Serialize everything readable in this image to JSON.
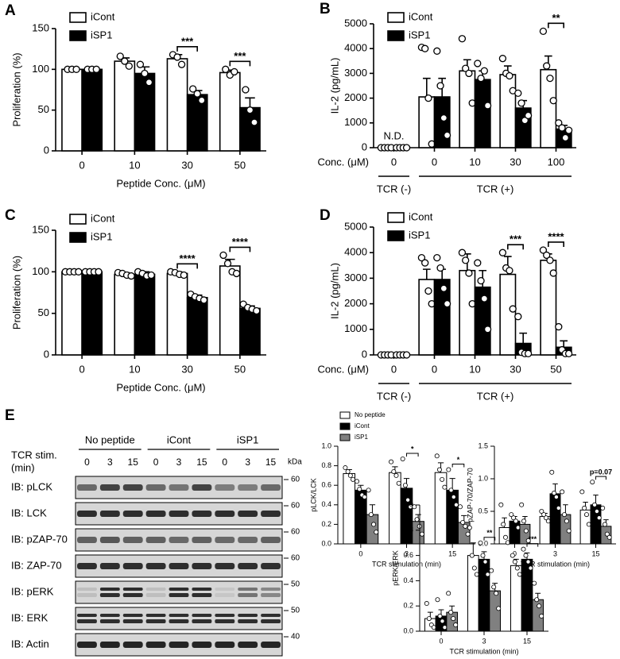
{
  "chart_data": [
    {
      "type": "bar",
      "panel": "A",
      "ylabel": "Proliferation (%)",
      "xlabel": "Peptide Conc. (μM)",
      "categories": [
        "0",
        "10",
        "30",
        "50"
      ],
      "ylim": [
        0,
        150
      ],
      "yticks": [
        0,
        50,
        100,
        150
      ],
      "legend": true,
      "series": [
        {
          "name": "iCont",
          "color": "#ffffff",
          "values": [
            100,
            110,
            113,
            96
          ],
          "errors": [
            0,
            4,
            5,
            3
          ],
          "points": [
            [
              100,
              100,
              100
            ],
            [
              116,
              110,
              104
            ],
            [
              118,
              115,
              106
            ],
            [
              100,
              93,
              97
            ]
          ]
        },
        {
          "name": "iSP1",
          "color": "#000000",
          "values": [
            100,
            95,
            69,
            53
          ],
          "errors": [
            0,
            8,
            5,
            12
          ],
          "points": [
            [
              100,
              100,
              100
            ],
            [
              106,
              95,
              84
            ],
            [
              76,
              70,
              62
            ],
            [
              75,
              50,
              35
            ]
          ]
        }
      ],
      "significance": [
        null,
        null,
        "***",
        "***"
      ]
    },
    {
      "type": "bar",
      "panel": "B",
      "ylabel": "IL-2 (pg/mL)",
      "category_axis_label": "Conc. (μM)",
      "groups": [
        {
          "label": "TCR (-)",
          "categories": [
            "0"
          ]
        },
        {
          "label": "TCR (+)",
          "categories": [
            "0",
            "10",
            "30",
            "100"
          ]
        }
      ],
      "ylim": [
        0,
        5000
      ],
      "yticks": [
        0,
        1000,
        2000,
        3000,
        4000,
        5000
      ],
      "legend": true,
      "nd_label": "N.D.",
      "series": [
        {
          "name": "iCont",
          "color": "#ffffff",
          "values": [
            0,
            2050,
            3100,
            2950,
            3150
          ],
          "errors": [
            0,
            750,
            450,
            350,
            550
          ],
          "points": [
            [
              0,
              0,
              0,
              0
            ],
            [
              4050,
              4000,
              2000,
              150
            ],
            [
              4400,
              3200,
              3000,
              1800
            ],
            [
              3600,
              3000,
              2900,
              2300
            ],
            [
              4700,
              3300,
              2800,
              1900
            ]
          ]
        },
        {
          "name": "iSP1",
          "color": "#000000",
          "values": [
            0,
            2050,
            2750,
            1600,
            750
          ],
          "errors": [
            0,
            750,
            350,
            300,
            150
          ],
          "points": [
            [
              0,
              0,
              0,
              0
            ],
            [
              3900,
              2500,
              1200,
              500
            ],
            [
              3400,
              2800,
              3100,
              1700
            ],
            [
              2200,
              1800,
              1100,
              1300
            ],
            [
              1000,
              800,
              400,
              700
            ]
          ]
        }
      ],
      "significance": [
        null,
        null,
        null,
        null,
        "**"
      ]
    },
    {
      "type": "bar",
      "panel": "C",
      "ylabel": "Proliferation (%)",
      "xlabel": "Peptide Conc. (μM)",
      "categories": [
        "0",
        "10",
        "30",
        "50"
      ],
      "ylim": [
        0,
        150
      ],
      "yticks": [
        0,
        50,
        100,
        150
      ],
      "legend": true,
      "series": [
        {
          "name": "iCont",
          "color": "#ffffff",
          "values": [
            100,
            97,
            98,
            107
          ],
          "errors": [
            0,
            2,
            2,
            8
          ],
          "points": [
            [
              100,
              100,
              100,
              100
            ],
            [
              99,
              98,
              96,
              95
            ],
            [
              100,
              99,
              97,
              96
            ],
            [
              120,
              110,
              100,
              98
            ]
          ]
        },
        {
          "name": "iSP1",
          "color": "#000000",
          "values": [
            100,
            97,
            69,
            56
          ],
          "errors": [
            0,
            3,
            3,
            3
          ],
          "points": [
            [
              100,
              100,
              100,
              100
            ],
            [
              100,
              98,
              95,
              96
            ],
            [
              73,
              70,
              68,
              66
            ],
            [
              61,
              57,
              55,
              53
            ]
          ]
        }
      ],
      "significance": [
        null,
        null,
        "****",
        "****"
      ]
    },
    {
      "type": "bar",
      "panel": "D",
      "ylabel": "IL-2 (pg/mL)",
      "category_axis_label": "Conc. (μM)",
      "groups": [
        {
          "label": "TCR (-)",
          "categories": [
            "0"
          ]
        },
        {
          "label": "TCR (+)",
          "categories": [
            "0",
            "10",
            "30",
            "50"
          ]
        }
      ],
      "ylim": [
        0,
        5000
      ],
      "yticks": [
        0,
        1000,
        2000,
        3000,
        4000,
        5000
      ],
      "legend": true,
      "series": [
        {
          "name": "iCont",
          "color": "#ffffff",
          "values": [
            0,
            2950,
            3300,
            3150,
            3700
          ],
          "errors": [
            0,
            400,
            650,
            700,
            250
          ],
          "points": [
            [
              0,
              0,
              0,
              0
            ],
            [
              3800,
              3600,
              2500,
              2000
            ],
            [
              4000,
              3700,
              3200,
              2000
            ],
            [
              4000,
              3400,
              3300,
              1800
            ],
            [
              4100,
              3900,
              3700,
              3200
            ]
          ]
        },
        {
          "name": "iSP1",
          "color": "#000000",
          "values": [
            0,
            2950,
            2650,
            450,
            300
          ],
          "errors": [
            0,
            400,
            650,
            400,
            250
          ],
          "points": [
            [
              0,
              0,
              0,
              0
            ],
            [
              3800,
              3400,
              2600,
              2000
            ],
            [
              3600,
              2900,
              2200,
              1000
            ],
            [
              1500,
              100,
              50,
              50
            ],
            [
              1100,
              200,
              50,
              50
            ]
          ]
        }
      ],
      "significance": [
        null,
        null,
        null,
        "***",
        "****"
      ]
    },
    {
      "type": "bar",
      "ylabel": "pLCK/LCK",
      "xlabel": "TCR stimulation (min)",
      "categories": [
        "0",
        "3",
        "15"
      ],
      "ylim": [
        0,
        1
      ],
      "yticks": [
        {
          "value": 0,
          "label": "0.0"
        },
        0.2,
        0.4,
        0.6,
        0.8,
        {
          "value": 1,
          "label": "1.0"
        }
      ],
      "legend": true,
      "series": [
        {
          "name": "No peptide",
          "color": "#ffffff",
          "values": [
            0.72,
            0.73,
            0.73
          ],
          "errors": [
            0.04,
            0.06,
            0.1
          ],
          "points": [
            [
              0.78,
              0.74,
              0.7,
              0.66
            ],
            [
              0.84,
              0.74,
              0.7,
              0.62
            ],
            [
              0.9,
              0.76,
              0.66,
              0.58
            ]
          ]
        },
        {
          "name": "iCont",
          "color": "#000000",
          "values": [
            0.55,
            0.57,
            0.55
          ],
          "errors": [
            0.05,
            0.1,
            0.12
          ],
          "points": [
            [
              0.64,
              0.56,
              0.5,
              0.48
            ],
            [
              0.87,
              0.6,
              0.45,
              0.38
            ],
            [
              0.76,
              0.55,
              0.48,
              0.4
            ]
          ]
        },
        {
          "name": "iSP1",
          "color": "#808080",
          "values": [
            0.3,
            0.23,
            0.22
          ],
          "errors": [
            0.1,
            0.07,
            0.07
          ],
          "points": [
            [
              0.55,
              0.3,
              0.2,
              0.12
            ],
            [
              0.38,
              0.25,
              0.18,
              0.1
            ],
            [
              0.38,
              0.22,
              0.18,
              0.1
            ]
          ]
        }
      ],
      "significance": [
        null,
        "*",
        "*"
      ]
    },
    {
      "type": "bar",
      "ylabel": "pZAP-70/ZAP-70",
      "xlabel": "TCR stimulation (min)",
      "categories": [
        "0",
        "3",
        "15"
      ],
      "ylim": [
        0,
        1.5
      ],
      "yticks": [
        {
          "value": 0,
          "label": "0.0"
        },
        0.5,
        {
          "value": 1,
          "label": "1.0"
        },
        1.5
      ],
      "legend": false,
      "series": [
        {
          "name": "No peptide",
          "color": "#ffffff",
          "values": [
            0.25,
            0.42,
            0.52
          ],
          "errors": [
            0.15,
            0.05,
            0.12
          ],
          "points": [
            [
              0.6,
              0.3,
              0.1,
              0.02
            ],
            [
              0.5,
              0.45,
              0.4,
              0.35
            ],
            [
              0.8,
              0.55,
              0.45,
              0.3
            ]
          ]
        },
        {
          "name": "iCont",
          "color": "#000000",
          "values": [
            0.35,
            0.77,
            0.6
          ],
          "errors": [
            0.07,
            0.15,
            0.15
          ],
          "points": [
            [
              0.45,
              0.4,
              0.35,
              0.25
            ],
            [
              1.1,
              0.78,
              0.72,
              0.55
            ],
            [
              0.95,
              0.6,
              0.5,
              0.4
            ]
          ]
        },
        {
          "name": "iSP1",
          "color": "#808080",
          "values": [
            0.3,
            0.45,
            0.27
          ],
          "errors": [
            0.12,
            0.15,
            0.1
          ],
          "points": [
            [
              0.6,
              0.35,
              0.2,
              0.05
            ],
            [
              0.8,
              0.45,
              0.35,
              0.2
            ],
            [
              0.55,
              0.3,
              0.15,
              0.1
            ]
          ]
        }
      ],
      "significance": [
        null,
        null,
        "p=0.07"
      ]
    },
    {
      "type": "bar",
      "ylabel": "pERK/ERK",
      "xlabel": "TCR stimulation (min)",
      "categories": [
        "0",
        "3",
        "15"
      ],
      "ylim": [
        0,
        1
      ],
      "yticks": [
        {
          "value": 0,
          "label": "0.0"
        },
        0.2,
        0.4,
        0.6,
        0.8,
        {
          "value": 1,
          "label": "1.0"
        }
      ],
      "legend": false,
      "series": [
        {
          "name": "No peptide",
          "color": "#ffffff",
          "values": [
            0.1,
            0.6,
            0.52
          ],
          "errors": [
            0.05,
            0.1,
            0.05
          ],
          "points": [
            [
              0.22,
              0.1,
              0.05,
              0.03
            ],
            [
              0.82,
              0.6,
              0.5,
              0.45
            ],
            [
              0.6,
              0.55,
              0.5,
              0.45
            ]
          ]
        },
        {
          "name": "iCont",
          "color": "#000000",
          "values": [
            0.12,
            0.57,
            0.57
          ],
          "errors": [
            0.05,
            0.06,
            0.05
          ],
          "points": [
            [
              0.25,
              0.12,
              0.08,
              0.03
            ],
            [
              0.7,
              0.6,
              0.55,
              0.45
            ],
            [
              0.65,
              0.6,
              0.55,
              0.5
            ]
          ]
        },
        {
          "name": "iSP1",
          "color": "#808080",
          "values": [
            0.15,
            0.32,
            0.25
          ],
          "errors": [
            0.05,
            0.06,
            0.05
          ],
          "points": [
            [
              0.3,
              0.15,
              0.1,
              0.05
            ],
            [
              0.48,
              0.35,
              0.3,
              0.18
            ],
            [
              0.38,
              0.25,
              0.2,
              0.12
            ]
          ]
        }
      ],
      "significance": [
        null,
        "**",
        "***"
      ]
    }
  ],
  "blot": {
    "panel": "E",
    "stim_label": [
      "TCR stim.",
      "(min)"
    ],
    "kda_label": "kDa",
    "groups": [
      {
        "label": "No peptide",
        "times": [
          "0",
          "3",
          "15"
        ]
      },
      {
        "label": "iCont",
        "times": [
          "0",
          "3",
          "15"
        ]
      },
      {
        "label": "iSP1",
        "times": [
          "0",
          "3",
          "15"
        ]
      }
    ],
    "rows": [
      {
        "label": "IB: pLCK",
        "kda": 60
      },
      {
        "label": "IB: LCK",
        "kda": 60
      },
      {
        "label": "IB: pZAP-70",
        "kda": 60
      },
      {
        "label": "IB: ZAP-70",
        "kda": 60
      },
      {
        "label": "IB: pERK",
        "kda": 50
      },
      {
        "label": "IB: ERK",
        "kda": 50
      },
      {
        "label": "IB: Actin",
        "kda": 40
      }
    ]
  }
}
